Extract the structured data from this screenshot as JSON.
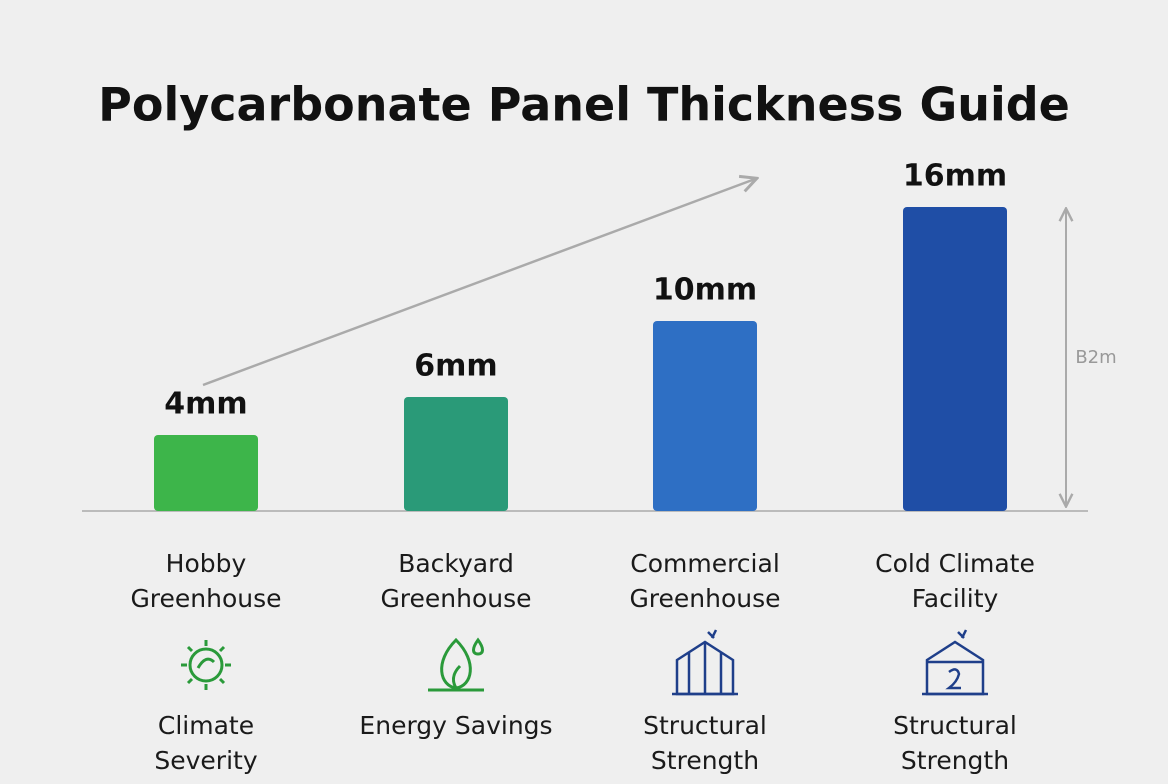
{
  "chart_data": {
    "type": "bar",
    "title": "Polycarbonate Panel Thickness Guide",
    "categories": [
      "Hobby Greenhouse",
      "Backyard Greenhouse",
      "Commercial Greenhouse",
      "Cold Climate Facility"
    ],
    "values": [
      4,
      6,
      10,
      16
    ],
    "value_labels": [
      "4mm",
      "6mm",
      "10mm",
      "16mm"
    ],
    "colors": [
      "#3db54a",
      "#2a9a78",
      "#2e6fc4",
      "#1f4ea6"
    ],
    "benefits": [
      "Climate Severity",
      "Energy Savings",
      "Structural Strength",
      "Structural Strength"
    ],
    "annotation": "B2m"
  }
}
